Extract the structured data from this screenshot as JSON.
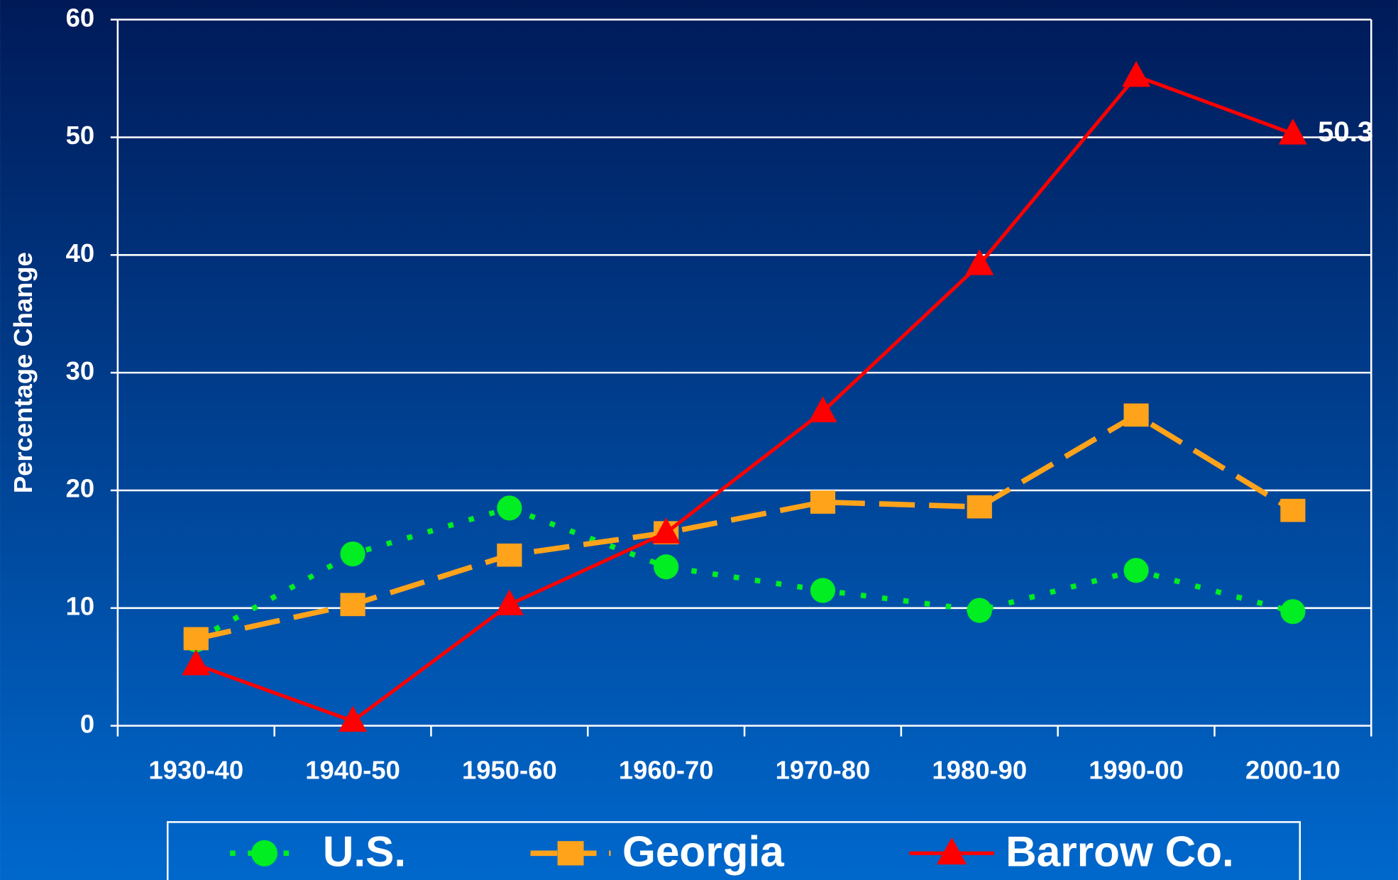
{
  "chart_data": {
    "type": "line",
    "y_label": "Percentage Change",
    "categories": [
      "1930-40",
      "1940-50",
      "1950-60",
      "1960-70",
      "1970-80",
      "1980-90",
      "1990-00",
      "2000-10"
    ],
    "series": [
      {
        "name": "U.S.",
        "color": "#00ee22",
        "line_style": "dotted",
        "marker": "circle",
        "values": [
          7.3,
          14.6,
          18.5,
          13.5,
          11.5,
          9.8,
          13.2,
          9.7
        ]
      },
      {
        "name": "Georgia",
        "color": "#ffa31a",
        "line_style": "dashed",
        "marker": "square",
        "values": [
          7.4,
          10.3,
          14.5,
          16.4,
          19.0,
          18.6,
          26.4,
          18.3
        ]
      },
      {
        "name": "Barrow Co.",
        "color": "#ff0000",
        "line_style": "solid",
        "marker": "triangle",
        "values": [
          5.2,
          0.4,
          10.3,
          16.4,
          26.7,
          39.2,
          55.2,
          50.3
        ],
        "value_labels": [
          null,
          null,
          null,
          null,
          null,
          null,
          null,
          "50.3"
        ]
      }
    ],
    "ylim": [
      0,
      60
    ],
    "yticks": [
      0,
      10,
      20,
      30,
      40,
      50,
      60
    ],
    "grid": true,
    "legend": "bottom"
  }
}
